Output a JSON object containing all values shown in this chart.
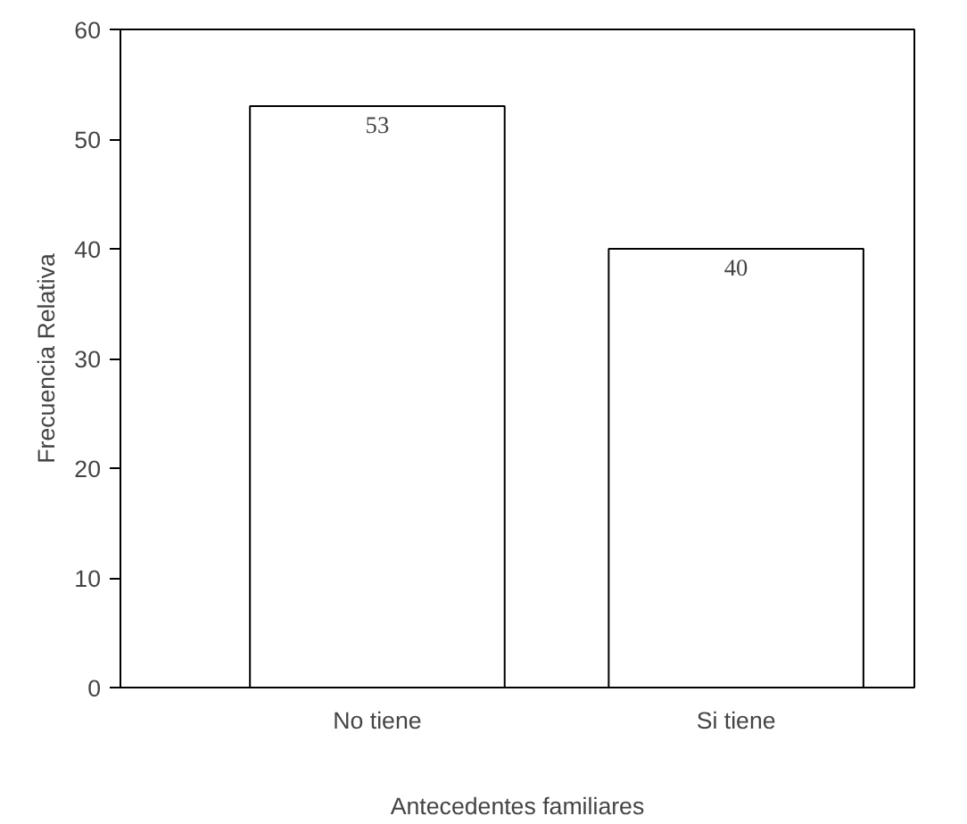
{
  "chart_data": {
    "type": "bar",
    "xlabel": "Antecedentes familiares",
    "ylabel": "Frecuencia Relativa",
    "categories": [
      "No tiene",
      "Si tiene"
    ],
    "values": [
      53,
      40
    ],
    "color": "#ffffff",
    "ylim": [
      0,
      60
    ],
    "yticks": [
      0,
      10,
      20,
      30,
      40,
      50,
      60
    ],
    "grid": false,
    "data_labels": true
  }
}
